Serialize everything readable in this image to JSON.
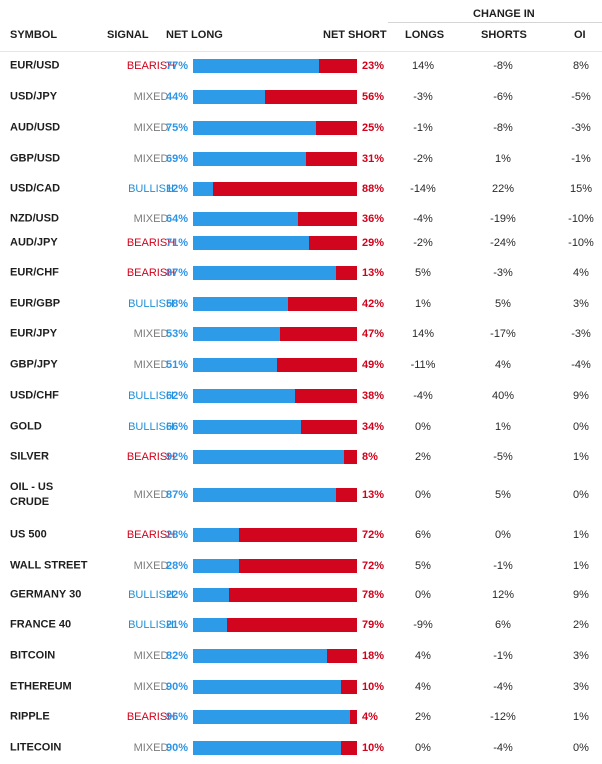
{
  "headers": {
    "symbol": "SYMBOL",
    "signal": "SIGNAL",
    "net_long": "NET LONG",
    "net_short": "NET SHORT",
    "change_in": "CHANGE IN",
    "longs": "LONGS",
    "shorts": "SHORTS",
    "oi": "OI"
  },
  "colors": {
    "bearish": "#d0021b",
    "bullish": "#1f8fd6",
    "mixed": "#7b7b7b",
    "long_bar": "#2d9be8",
    "short_bar": "#d2051e"
  },
  "rows": [
    {
      "symbol": "EUR/USD",
      "signal": "BEARISH",
      "net_long": "77%",
      "long_pct": 77,
      "net_short": "23%",
      "change_longs": "14%",
      "change_shorts": "-8%",
      "change_oi": "8%"
    },
    {
      "symbol": "USD/JPY",
      "signal": "MIXED",
      "net_long": "44%",
      "long_pct": 44,
      "net_short": "56%",
      "change_longs": "-3%",
      "change_shorts": "-6%",
      "change_oi": "-5%"
    },
    {
      "symbol": "AUD/USD",
      "signal": "MIXED",
      "net_long": "75%",
      "long_pct": 75,
      "net_short": "25%",
      "change_longs": "-1%",
      "change_shorts": "-8%",
      "change_oi": "-3%"
    },
    {
      "symbol": "GBP/USD",
      "signal": "MIXED",
      "net_long": "69%",
      "long_pct": 69,
      "net_short": "31%",
      "change_longs": "-2%",
      "change_shorts": "1%",
      "change_oi": "-1%"
    },
    {
      "symbol": "USD/CAD",
      "signal": "BULLISH",
      "net_long": "12%",
      "long_pct": 12,
      "net_short": "88%",
      "change_longs": "-14%",
      "change_shorts": "22%",
      "change_oi": "15%"
    },
    {
      "symbol": "NZD/USD",
      "signal": "MIXED",
      "net_long": "64%",
      "long_pct": 64,
      "net_short": "36%",
      "change_longs": "-4%",
      "change_shorts": "-19%",
      "change_oi": "-10%"
    },
    {
      "symbol": "AUD/JPY",
      "signal": "BEARISH",
      "net_long": "71%",
      "long_pct": 71,
      "net_short": "29%",
      "change_longs": "-2%",
      "change_shorts": "-24%",
      "change_oi": "-10%"
    },
    {
      "symbol": "EUR/CHF",
      "signal": "BEARISH",
      "net_long": "87%",
      "long_pct": 87,
      "net_short": "13%",
      "change_longs": "5%",
      "change_shorts": "-3%",
      "change_oi": "4%"
    },
    {
      "symbol": "EUR/GBP",
      "signal": "BULLISH",
      "net_long": "58%",
      "long_pct": 58,
      "net_short": "42%",
      "change_longs": "1%",
      "change_shorts": "5%",
      "change_oi": "3%"
    },
    {
      "symbol": "EUR/JPY",
      "signal": "MIXED",
      "net_long": "53%",
      "long_pct": 53,
      "net_short": "47%",
      "change_longs": "14%",
      "change_shorts": "-17%",
      "change_oi": "-3%"
    },
    {
      "symbol": "GBP/JPY",
      "signal": "MIXED",
      "net_long": "51%",
      "long_pct": 51,
      "net_short": "49%",
      "change_longs": "-11%",
      "change_shorts": "4%",
      "change_oi": "-4%"
    },
    {
      "symbol": "USD/CHF",
      "signal": "BULLISH",
      "net_long": "62%",
      "long_pct": 62,
      "net_short": "38%",
      "change_longs": "-4%",
      "change_shorts": "40%",
      "change_oi": "9%"
    },
    {
      "symbol": "GOLD",
      "signal": "BULLISH",
      "net_long": "66%",
      "long_pct": 66,
      "net_short": "34%",
      "change_longs": "0%",
      "change_shorts": "1%",
      "change_oi": "0%"
    },
    {
      "symbol": "SILVER",
      "signal": "BEARISH",
      "net_long": "92%",
      "long_pct": 92,
      "net_short": "8%",
      "change_longs": "2%",
      "change_shorts": "-5%",
      "change_oi": "1%"
    },
    {
      "symbol": "OIL - US CRUDE",
      "signal": "MIXED",
      "net_long": "87%",
      "long_pct": 87,
      "net_short": "13%",
      "change_longs": "0%",
      "change_shorts": "5%",
      "change_oi": "0%"
    },
    {
      "symbol": "US 500",
      "signal": "BEARISH",
      "net_long": "28%",
      "long_pct": 28,
      "net_short": "72%",
      "change_longs": "6%",
      "change_shorts": "0%",
      "change_oi": "1%"
    },
    {
      "symbol": "WALL STREET",
      "signal": "MIXED",
      "net_long": "28%",
      "long_pct": 28,
      "net_short": "72%",
      "change_longs": "5%",
      "change_shorts": "-1%",
      "change_oi": "1%"
    },
    {
      "symbol": "GERMANY 30",
      "signal": "BULLISH",
      "net_long": "22%",
      "long_pct": 22,
      "net_short": "78%",
      "change_longs": "0%",
      "change_shorts": "12%",
      "change_oi": "9%"
    },
    {
      "symbol": "FRANCE 40",
      "signal": "BULLISH",
      "net_long": "21%",
      "long_pct": 21,
      "net_short": "79%",
      "change_longs": "-9%",
      "change_shorts": "6%",
      "change_oi": "2%"
    },
    {
      "symbol": "BITCOIN",
      "signal": "MIXED",
      "net_long": "82%",
      "long_pct": 82,
      "net_short": "18%",
      "change_longs": "4%",
      "change_shorts": "-1%",
      "change_oi": "3%"
    },
    {
      "symbol": "ETHEREUM",
      "signal": "MIXED",
      "net_long": "90%",
      "long_pct": 90,
      "net_short": "10%",
      "change_longs": "4%",
      "change_shorts": "-4%",
      "change_oi": "3%"
    },
    {
      "symbol": "RIPPLE",
      "signal": "BEARISH",
      "net_long": "96%",
      "long_pct": 96,
      "net_short": "4%",
      "change_longs": "2%",
      "change_shorts": "-12%",
      "change_oi": "1%"
    },
    {
      "symbol": "LITECOIN",
      "signal": "MIXED",
      "net_long": "90%",
      "long_pct": 90,
      "net_short": "10%",
      "change_longs": "0%",
      "change_shorts": "-4%",
      "change_oi": "0%"
    }
  ]
}
